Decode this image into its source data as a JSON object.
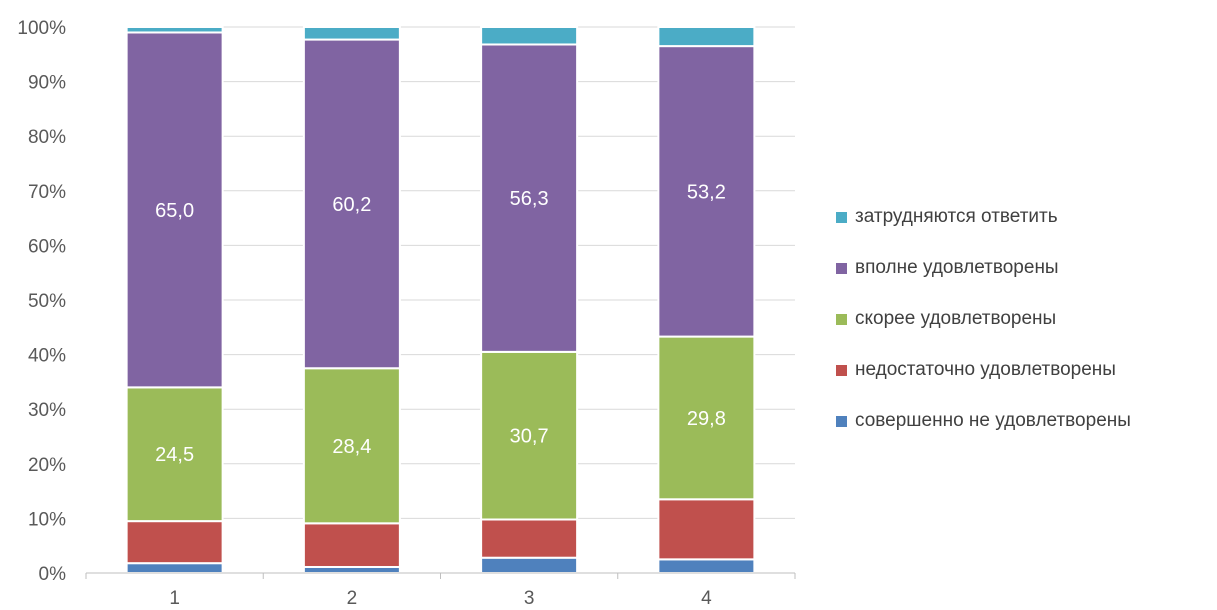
{
  "chart_data": {
    "type": "bar",
    "stacked": "percent",
    "categories": [
      "1",
      "2",
      "3",
      "4"
    ],
    "ylim": [
      0,
      100
    ],
    "y_ticks": [
      "0%",
      "10%",
      "20%",
      "30%",
      "40%",
      "50%",
      "60%",
      "70%",
      "80%",
      "90%",
      "100%"
    ],
    "grid": true,
    "legend_position": "right",
    "series": [
      {
        "name": "совершенно не удовлетворены",
        "color": "#4f81bd",
        "values": [
          1.8,
          1.1,
          2.8,
          2.5
        ],
        "labels": [
          "",
          "",
          "",
          ""
        ]
      },
      {
        "name": "недостаточно удовлетворены",
        "color": "#c0504d",
        "values": [
          7.7,
          8.0,
          7.0,
          11.0
        ],
        "labels": [
          "",
          "",
          "",
          ""
        ]
      },
      {
        "name": "скорее удовлетворены",
        "color": "#9bbb59",
        "values": [
          24.5,
          28.4,
          30.7,
          29.8
        ],
        "labels": [
          "24,5",
          "28,4",
          "30,7",
          "29,8"
        ]
      },
      {
        "name": "вполне удовлетворены",
        "color": "#8064a2",
        "values": [
          65.0,
          60.2,
          56.3,
          53.2
        ],
        "labels": [
          "65,0",
          "60,2",
          "56,3",
          "53,2"
        ]
      },
      {
        "name": "затрудняются ответить",
        "color": "#4bacc6",
        "values": [
          1.0,
          2.3,
          3.2,
          3.5
        ],
        "labels": [
          "",
          "",
          "",
          ""
        ]
      }
    ]
  },
  "legend": {
    "items": [
      {
        "label": "затрудняются ответить",
        "color": "#4bacc6"
      },
      {
        "label": "вполне удовлетворены",
        "color": "#8064a2"
      },
      {
        "label": "скорее удовлетворены",
        "color": "#9bbb59"
      },
      {
        "label": "недостаточно удовлетворены",
        "color": "#c0504d"
      },
      {
        "label": "совершенно не удовлетворены",
        "color": "#4f81bd"
      }
    ]
  }
}
